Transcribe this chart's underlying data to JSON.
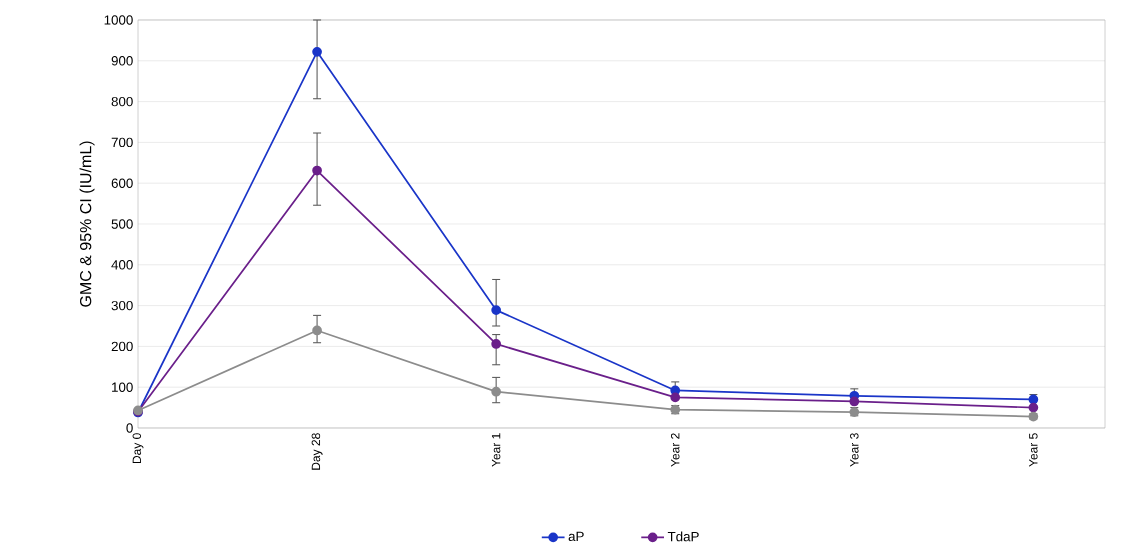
{
  "chart_data": {
    "type": "line",
    "ylabel": "GMC & 95% CI (IU/mL)",
    "categories": [
      "Day 0",
      "Day 28",
      "Year 1",
      "Year 2",
      "Year 3",
      "Year 5"
    ],
    "ylim": [
      0,
      1000
    ],
    "yticks": [
      0,
      100,
      200,
      300,
      400,
      500,
      600,
      700,
      800,
      900,
      1000
    ],
    "grid": "y",
    "legend": "bottom",
    "marker": "circle",
    "series": [
      {
        "name": "aP",
        "color": "#1a35c8",
        "values": [
          38,
          922,
          289,
          92,
          79,
          70
        ],
        "errors": [
          null,
          [
            807,
            1000
          ],
          [
            250,
            364
          ],
          [
            92,
            113
          ],
          [
            79,
            96
          ],
          [
            70,
            82
          ]
        ]
      },
      {
        "name": "TdaP",
        "color": "#6a1f8a",
        "values": [
          40,
          631,
          206,
          75,
          65,
          50
        ],
        "errors": [
          null,
          [
            546,
            723
          ],
          [
            155,
            229
          ],
          null,
          null,
          null
        ]
      },
      {
        "color": "#8c8c8c",
        "values": [
          43,
          239,
          89,
          45,
          39,
          28
        ],
        "errors": [
          null,
          [
            209,
            276
          ],
          [
            62,
            124
          ],
          [
            35,
            55
          ],
          [
            30,
            50
          ],
          [
            22,
            35
          ]
        ]
      }
    ]
  }
}
